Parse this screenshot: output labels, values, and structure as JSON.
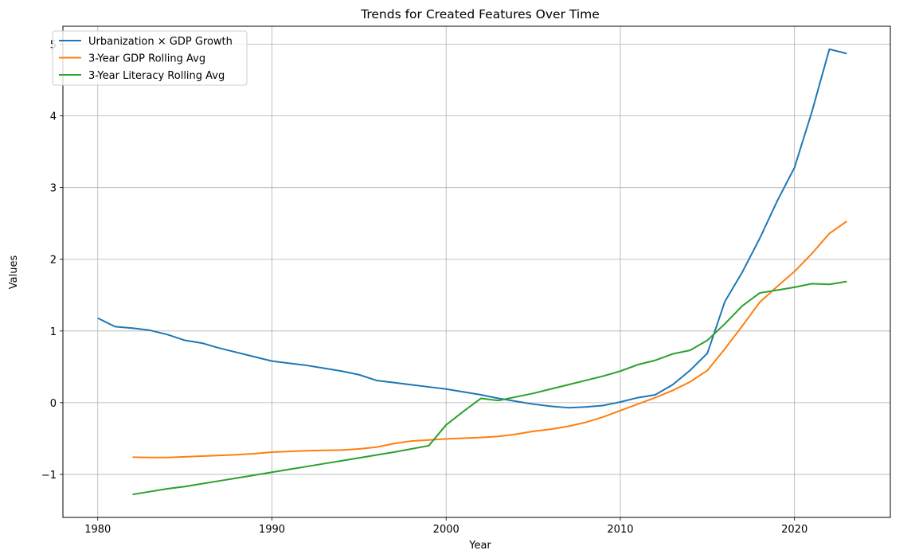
{
  "chart_data": {
    "type": "line",
    "title": "Trends for Created Features Over Time",
    "xlabel": "Year",
    "ylabel": "Values",
    "xlim": [
      1978,
      2025.5
    ],
    "ylim": [
      -1.6,
      5.25
    ],
    "xticks": [
      1980,
      1990,
      2000,
      2010,
      2020
    ],
    "yticks": [
      -1,
      0,
      1,
      2,
      3,
      4,
      5
    ],
    "ytick_labels": [
      "−1",
      "0",
      "1",
      "2",
      "3",
      "4",
      "5"
    ],
    "grid": true,
    "legend_position": "top-left",
    "x": [
      1980,
      1981,
      1982,
      1983,
      1984,
      1985,
      1986,
      1987,
      1988,
      1989,
      1990,
      1991,
      1992,
      1993,
      1994,
      1995,
      1996,
      1997,
      1998,
      1999,
      2000,
      2001,
      2002,
      2003,
      2004,
      2005,
      2006,
      2007,
      2008,
      2009,
      2010,
      2011,
      2012,
      2013,
      2014,
      2015,
      2016,
      2017,
      2018,
      2019,
      2020,
      2021,
      2022,
      2023
    ],
    "series": [
      {
        "name": "Urbanization × GDP Growth",
        "color": "#1f77b4",
        "values": [
          1.18,
          1.06,
          1.04,
          1.01,
          0.95,
          0.87,
          0.83,
          0.76,
          0.7,
          0.64,
          0.58,
          0.55,
          0.52,
          0.48,
          0.44,
          0.39,
          0.31,
          0.28,
          0.25,
          0.22,
          0.19,
          0.15,
          0.11,
          0.06,
          0.02,
          -0.02,
          -0.05,
          -0.07,
          -0.06,
          -0.04,
          0.01,
          0.07,
          0.11,
          0.25,
          0.45,
          0.69,
          1.41,
          1.82,
          2.29,
          2.81,
          3.28,
          4.06,
          4.93,
          4.87
        ]
      },
      {
        "name": "3-Year GDP Rolling Avg",
        "color": "#ff7f0e",
        "values": [
          null,
          null,
          -0.76,
          -0.765,
          -0.765,
          -0.755,
          -0.745,
          -0.735,
          -0.725,
          -0.71,
          -0.69,
          -0.68,
          -0.67,
          -0.665,
          -0.66,
          -0.645,
          -0.62,
          -0.57,
          -0.535,
          -0.52,
          -0.505,
          -0.495,
          -0.485,
          -0.47,
          -0.44,
          -0.4,
          -0.37,
          -0.33,
          -0.275,
          -0.2,
          -0.11,
          -0.02,
          0.07,
          0.17,
          0.29,
          0.45,
          0.75,
          1.07,
          1.4,
          1.62,
          1.83,
          2.08,
          2.36,
          2.53
        ]
      },
      {
        "name": "3-Year Literacy Rolling Avg",
        "color": "#2ca02c",
        "values": [
          null,
          null,
          -1.28,
          -1.24,
          -1.2,
          -1.17,
          -1.13,
          -1.09,
          -1.05,
          -1.01,
          -0.97,
          -0.93,
          -0.89,
          -0.85,
          -0.81,
          -0.77,
          -0.73,
          -0.69,
          -0.645,
          -0.6,
          -0.31,
          -0.12,
          0.06,
          0.03,
          0.08,
          0.13,
          0.19,
          0.25,
          0.31,
          0.37,
          0.44,
          0.53,
          0.59,
          0.68,
          0.73,
          0.87,
          1.1,
          1.35,
          1.53,
          1.57,
          1.61,
          1.66,
          1.65,
          1.69
        ]
      }
    ]
  }
}
